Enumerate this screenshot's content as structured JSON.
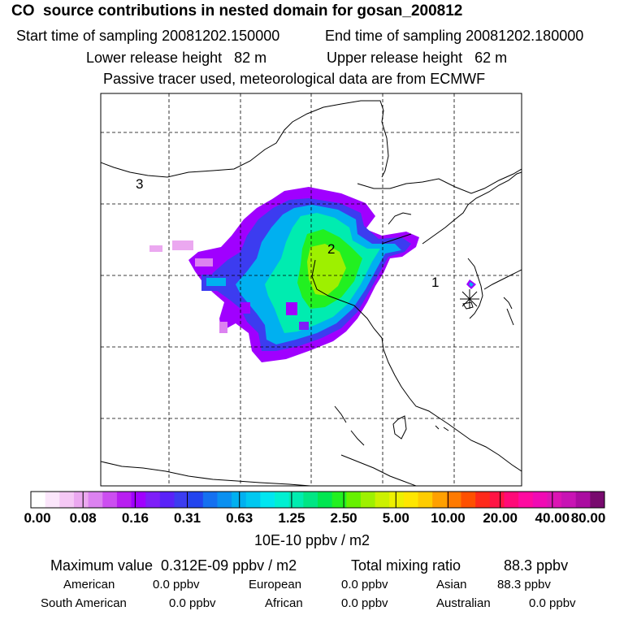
{
  "header": {
    "title": "CO  source contributions in nested domain for gosan_200812",
    "start": "Start time of sampling 20081202.150000",
    "end": "End time of sampling 20081202.180000",
    "lower": "Lower release height   82 m",
    "upper": "Upper release height   62 m",
    "note": "Passive tracer used, meteorological data are from ECMWF"
  },
  "map": {
    "region_labels": [
      "1",
      "2",
      "3"
    ],
    "receptor_icon": "asterisk-icon"
  },
  "colorbar": {
    "tick_labels": [
      "0.00",
      "0.08",
      "0.16",
      "0.31",
      "0.63",
      "1.25",
      "2.50",
      "5.00",
      "10.00",
      "20.00",
      "40.00",
      "80.00"
    ],
    "unit": "10E-10 ppbv / m2",
    "colors": [
      "#ffffff",
      "#fbe6fb",
      "#f5c8f5",
      "#eba8f0",
      "#dc82f0",
      "#cc4ef0",
      "#b81ef0",
      "#a000ff",
      "#7e1ef8",
      "#5a22f8",
      "#3c3cf0",
      "#2244ee",
      "#1470f0",
      "#0a90f0",
      "#00b0f0",
      "#00c8f0",
      "#00e6f0",
      "#00f0d2",
      "#00ecb0",
      "#00e684",
      "#00e650",
      "#22f020",
      "#66f000",
      "#9ef000",
      "#ccf000",
      "#eef000",
      "#ffe600",
      "#ffcc00",
      "#ffa000",
      "#ff7a00",
      "#ff5000",
      "#ff2a1a",
      "#ff1444",
      "#ff0a78",
      "#ff0aa0",
      "#f00ab4",
      "#dc14b4",
      "#c814b4",
      "#aa0ca0",
      "#780a6e"
    ]
  },
  "summary": {
    "max_label": "Maximum value  0.312E-09 ppbv / m2",
    "total_label": "Total mixing ratio",
    "total_value": "88.3 ppbv",
    "american_label": "American",
    "american_value": "0.0 ppbv",
    "european_label": "European",
    "european_value": "0.0 ppbv",
    "asian_label": "Asian",
    "asian_value": "88.3 ppbv",
    "south_american_label": "South American",
    "south_american_value": "0.0 ppbv",
    "african_label": "African",
    "african_value": "0.0 ppbv",
    "australian_label": "Australian",
    "australian_value": "0.0 ppbv"
  }
}
